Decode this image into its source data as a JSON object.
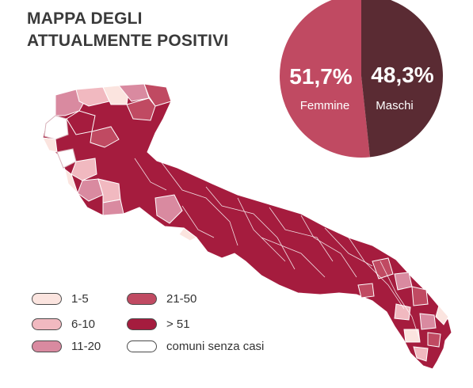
{
  "title": {
    "line1": "MAPPA DEGLI",
    "line2": "ATTUALMENTE POSITIVI"
  },
  "gender": {
    "female": {
      "percent": "51,7%",
      "label": "Femmine",
      "value": 51.7,
      "color": "#c04a62"
    },
    "male": {
      "percent": "48,3%",
      "label": "Maschi",
      "value": 48.3,
      "color": "#5a2b33"
    }
  },
  "legend": [
    {
      "label": "1-5",
      "color": "#fbe4df"
    },
    {
      "label": "6-10",
      "color": "#f1b9c0"
    },
    {
      "label": "11-20",
      "color": "#d98aa0"
    },
    {
      "label": "21-50",
      "color": "#c04a62"
    },
    {
      "label": "> 51",
      "color": "#a51c3e"
    },
    {
      "label": "comuni senza casi",
      "color": "#ffffff"
    }
  ],
  "map_colors": {
    "dominant": "#a51c3e",
    "border": "#7a1230"
  }
}
